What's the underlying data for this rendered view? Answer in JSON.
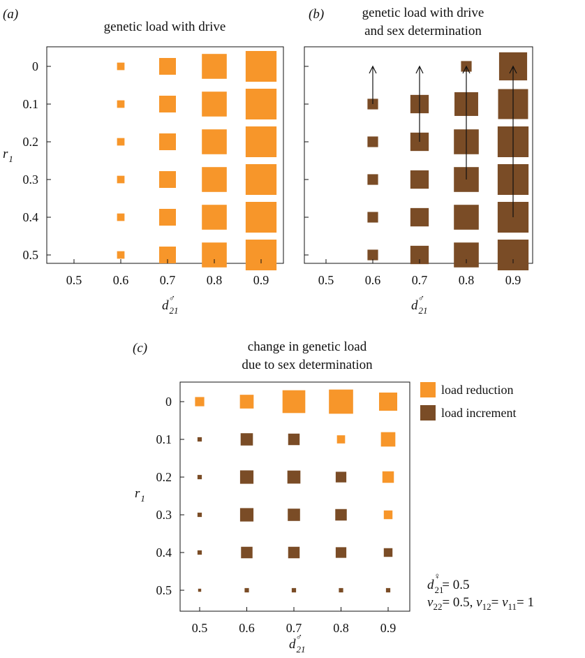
{
  "colors": {
    "reduction": "#f7962a",
    "increment": "#7a4c26",
    "axis": "#111111",
    "arrow": "#111111"
  },
  "panels": [
    {
      "letter": "(a)",
      "title_lines": [
        "genetic load with drive"
      ],
      "x_ticks": [
        "0.5",
        "0.6",
        "0.7",
        "0.8",
        "0.9"
      ],
      "y_ticks": [
        "0",
        "0.1",
        "0.2",
        "0.3",
        "0.4",
        "0.5"
      ],
      "x_label": "d",
      "x_label_sub": "21",
      "x_label_sup": "♂",
      "y_label": "r",
      "y_label_sub": "1"
    },
    {
      "letter": "(b)",
      "title_lines": [
        "genetic load with drive",
        "and sex determination"
      ],
      "x_ticks": [
        "0.5",
        "0.6",
        "0.7",
        "0.8",
        "0.9"
      ],
      "x_label": "d",
      "x_label_sub": "21",
      "x_label_sup": "♂"
    },
    {
      "letter": "(c)",
      "title_lines": [
        "change in genetic load",
        "due to sex determination"
      ],
      "x_ticks": [
        "0.5",
        "0.6",
        "0.7",
        "0.8",
        "0.9"
      ],
      "y_ticks": [
        "0",
        "0.1",
        "0.2",
        "0.3",
        "0.4",
        "0.5"
      ],
      "x_label": "d",
      "x_label_sub": "21",
      "x_label_sup": "♂",
      "y_label": "r",
      "y_label_sub": "1"
    }
  ],
  "legend": {
    "reduction_label": "load reduction",
    "increment_label": "load increment"
  },
  "parameters": {
    "line1_var": "d",
    "line1_sub": "21",
    "line1_sup": "♀",
    "line1_val": "= 0.5",
    "line2_text": "v",
    "line2_sub1": "22",
    "line2_mid": "= 0.5, ",
    "line2_sub2": "12",
    "line2_eq": "= ",
    "line2_sub3": "11",
    "line2_end": "= 1"
  },
  "chart_data": [
    {
      "type": "heatmap",
      "panel": "a",
      "encoding": "square size proportional to genetic load",
      "x": [
        0.5,
        0.6,
        0.7,
        0.8,
        0.9
      ],
      "y": [
        0,
        0.1,
        0.2,
        0.3,
        0.4,
        0.5
      ],
      "xlim": [
        0.45,
        0.95
      ],
      "ylim": [
        0.55,
        -0.05
      ],
      "series": [
        {
          "values": [
            [
              0,
              0.05,
              0.25,
              0.55,
              0.85
            ],
            [
              0,
              0.05,
              0.25,
              0.55,
              0.85
            ],
            [
              0,
              0.05,
              0.25,
              0.55,
              0.85
            ],
            [
              0,
              0.05,
              0.25,
              0.55,
              0.85
            ],
            [
              0,
              0.05,
              0.25,
              0.55,
              0.85
            ],
            [
              0,
              0.05,
              0.25,
              0.55,
              0.85
            ]
          ]
        }
      ]
    },
    {
      "type": "heatmap",
      "panel": "b",
      "encoding": "square size proportional to genetic load",
      "x": [
        0.5,
        0.6,
        0.7,
        0.8,
        0.9
      ],
      "y": [
        0,
        0.1,
        0.2,
        0.3,
        0.4,
        0.5
      ],
      "xlim": [
        0.45,
        0.95
      ],
      "ylim": [
        0.55,
        -0.05
      ],
      "series": [
        {
          "values": [
            [
              0,
              0,
              0,
              0.1,
              0.7
            ],
            [
              0,
              0.1,
              0.3,
              0.5,
              0.8
            ],
            [
              0,
              0.1,
              0.3,
              0.55,
              0.85
            ],
            [
              0,
              0.1,
              0.3,
              0.55,
              0.85
            ],
            [
              0,
              0.1,
              0.3,
              0.55,
              0.85
            ],
            [
              0,
              0.1,
              0.3,
              0.55,
              0.85
            ]
          ]
        }
      ],
      "arrows": [
        {
          "x": 0.6,
          "from": 0.1,
          "to": 0.0
        },
        {
          "x": 0.7,
          "from": 0.2,
          "to": 0.0
        },
        {
          "x": 0.8,
          "from": 0.3,
          "to": 0.0
        },
        {
          "x": 0.9,
          "from": 0.4,
          "to": 0.0
        }
      ]
    },
    {
      "type": "heatmap",
      "panel": "c",
      "encoding": "square size proportional to magnitude of change; colour = sign",
      "x": [
        0.5,
        0.6,
        0.7,
        0.8,
        0.9
      ],
      "y": [
        0,
        0.1,
        0.2,
        0.3,
        0.4,
        0.5
      ],
      "xlim": [
        0.45,
        0.95
      ],
      "ylim": [
        0.55,
        -0.05
      ],
      "series": [
        {
          "name": "load reduction",
          "values": [
            [
              0.09,
              0.2,
              0.55,
              0.62,
              0.35
            ],
            [
              0,
              0,
              0,
              0.07,
              0.22
            ],
            [
              0,
              0,
              0,
              0,
              0.14
            ],
            [
              0,
              0,
              0,
              0,
              0.08
            ],
            [
              0,
              0,
              0,
              0,
              0
            ],
            [
              0,
              0,
              0,
              0,
              0
            ]
          ]
        },
        {
          "name": "load increment",
          "values": [
            [
              0,
              0,
              0,
              0,
              0
            ],
            [
              0.02,
              0.16,
              0.14,
              0,
              0
            ],
            [
              0.02,
              0.19,
              0.18,
              0.12,
              0
            ],
            [
              0.02,
              0.19,
              0.16,
              0.14,
              0
            ],
            [
              0.02,
              0.14,
              0.14,
              0.12,
              0.08
            ],
            [
              0.01,
              0.02,
              0.02,
              0.02,
              0.02
            ]
          ]
        }
      ]
    }
  ]
}
